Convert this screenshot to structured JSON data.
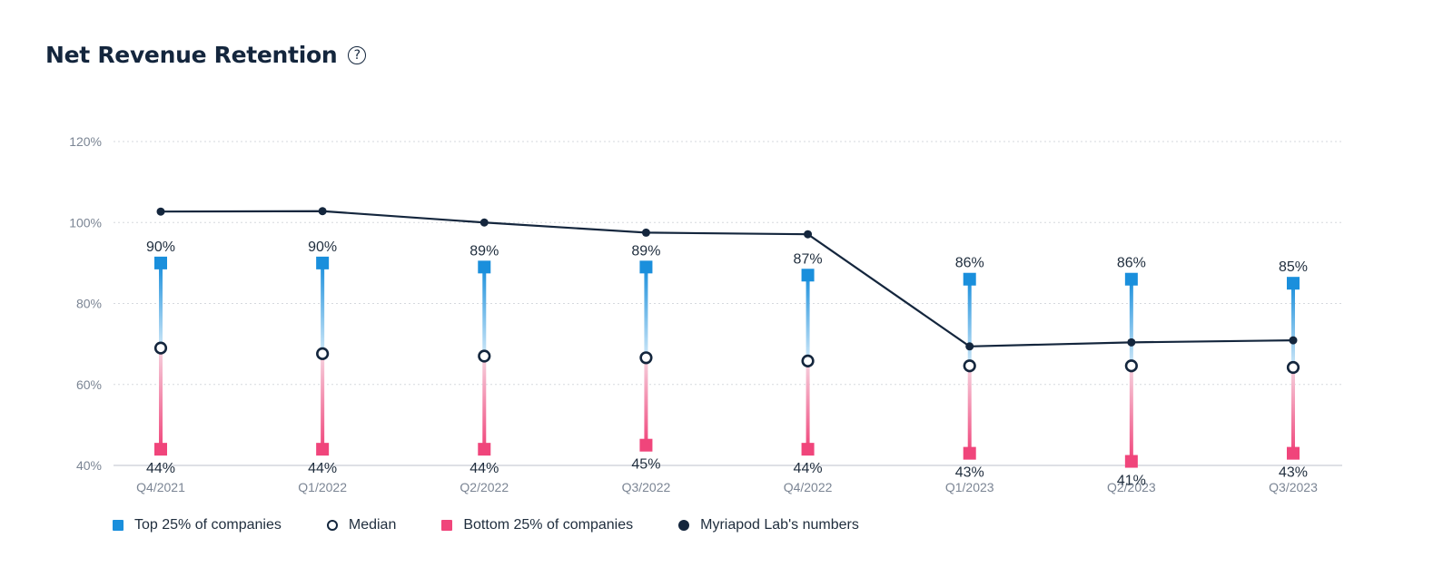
{
  "header": {
    "title": "Net Revenue Retention",
    "help_glyph": "?"
  },
  "colors": {
    "top": "#1a8fdc",
    "bottom": "#f0457b",
    "median": "#14263d",
    "line": "#14263d",
    "grid": "#d5d9de"
  },
  "legend": [
    {
      "key": "top",
      "label": "Top 25% of companies",
      "marker": "square"
    },
    {
      "key": "median",
      "label": "Median",
      "marker": "ring"
    },
    {
      "key": "bottom",
      "label": "Bottom 25% of companies",
      "marker": "square"
    },
    {
      "key": "line",
      "label": "Myriapod Lab's numbers",
      "marker": "dot"
    }
  ],
  "chart_data": {
    "type": "line",
    "categories": [
      "Q4/2021",
      "Q1/2022",
      "Q2/2022",
      "Q3/2022",
      "Q4/2022",
      "Q1/2023",
      "Q2/2023",
      "Q3/2023"
    ],
    "ylim": [
      40,
      120
    ],
    "yticks": [
      40,
      60,
      80,
      100,
      120
    ],
    "ytick_labels": [
      "40%",
      "60%",
      "80%",
      "100%",
      "120%"
    ],
    "grid": true,
    "legend_position": "bottom-left",
    "series": [
      {
        "name": "Top 25% of companies",
        "values": [
          90,
          90,
          89,
          89,
          87,
          86,
          86,
          85
        ],
        "labels": [
          "90%",
          "90%",
          "89%",
          "89%",
          "87%",
          "86%",
          "86%",
          "85%"
        ]
      },
      {
        "name": "Median",
        "values": [
          69,
          67.6,
          67,
          66.6,
          65.8,
          64.6,
          64.6,
          64.2
        ]
      },
      {
        "name": "Bottom 25% of companies",
        "values": [
          44,
          44,
          44,
          45,
          44,
          43,
          41,
          43
        ],
        "labels": [
          "44%",
          "44%",
          "44%",
          "45%",
          "44%",
          "43%",
          "41%",
          "43%"
        ]
      },
      {
        "name": "Myriapod Lab's numbers",
        "values": [
          102.7,
          102.8,
          100,
          97.5,
          97.1,
          69.4,
          70.4,
          70.9
        ]
      }
    ]
  }
}
